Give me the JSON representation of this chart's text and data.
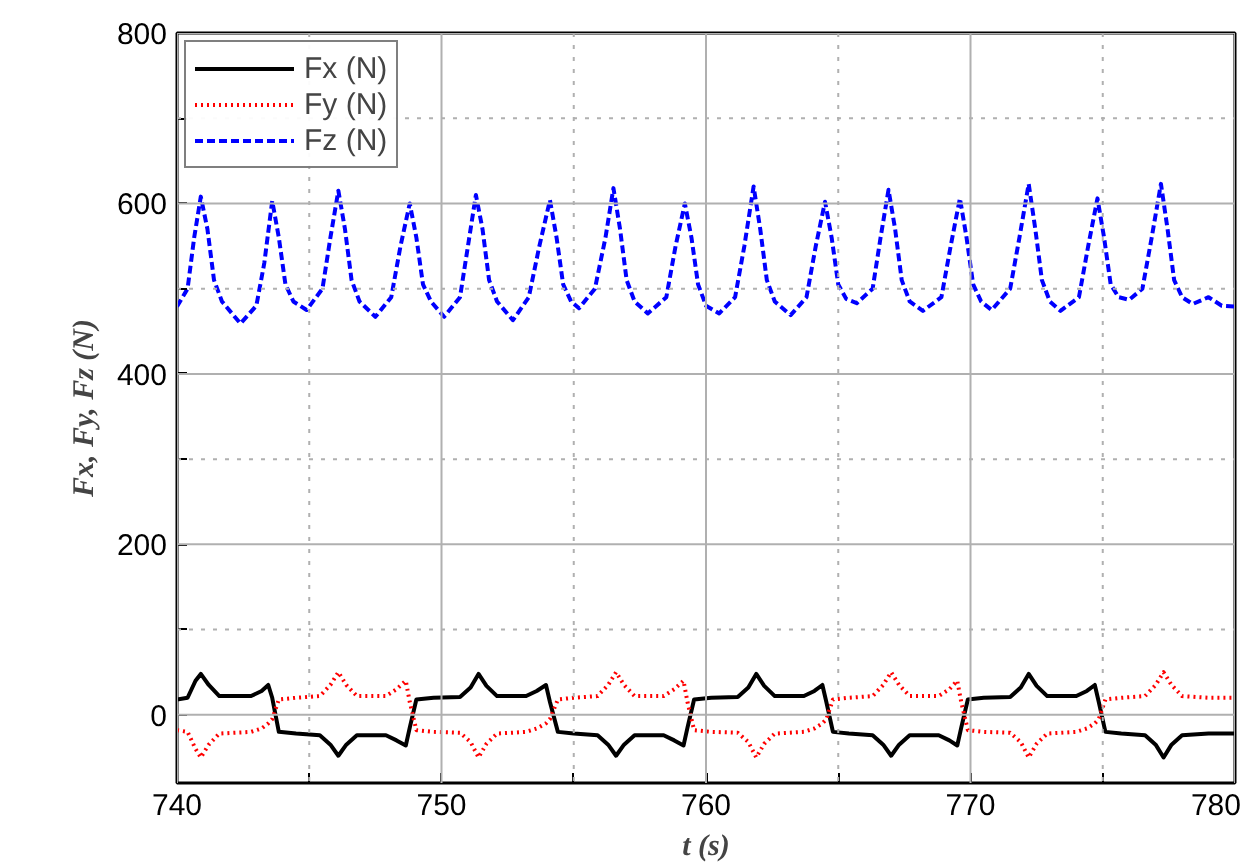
{
  "chart_data": {
    "type": "line",
    "xlabel": "t (s)",
    "ylabel": "Fx, Fy, Fz (N)",
    "xlim": [
      740,
      780
    ],
    "ylim": [
      -80,
      800
    ],
    "xticks": [
      740,
      {
        "value": 745,
        "label": null
      },
      750,
      {
        "value": 755,
        "label": null
      },
      760,
      {
        "value": 765,
        "label": null
      },
      770,
      {
        "value": 775,
        "label": null
      },
      780
    ],
    "yticks": [
      0,
      {
        "value": 100,
        "label": null
      },
      200,
      {
        "value": 300,
        "label": null
      },
      400,
      {
        "value": 500,
        "label": null
      },
      600,
      {
        "value": 700,
        "label": null
      },
      800
    ],
    "grid": true,
    "legend": "top left",
    "series": [
      {
        "name": "Fx (N)",
        "color": "#000000",
        "line_style": "solid",
        "x": [
          740,
          740.4,
          740.7,
          740.9,
          741.2,
          741.6,
          742.8,
          743.2,
          743.45,
          743.6,
          743.85,
          744.5,
          745.4,
          745.8,
          746.1,
          746.4,
          746.8,
          747.9,
          748.3,
          748.65,
          748.8,
          749.05,
          749.7,
          750.7,
          751.1,
          751.4,
          751.7,
          752.1,
          753.2,
          753.6,
          753.95,
          754.1,
          754.4,
          755.0,
          755.9,
          756.3,
          756.6,
          756.9,
          757.3,
          758.4,
          758.8,
          759.15,
          759.3,
          759.55,
          760.2,
          761.2,
          761.6,
          761.9,
          762.2,
          762.6,
          763.7,
          764.1,
          764.4,
          764.55,
          764.8,
          765.4,
          766.3,
          766.7,
          767.0,
          767.3,
          767.7,
          768.8,
          769.2,
          769.5,
          769.65,
          769.9,
          770.5,
          771.5,
          771.9,
          772.2,
          772.5,
          772.9,
          774.0,
          774.4,
          774.7,
          774.85,
          775.1,
          775.7,
          776.6,
          777.0,
          777.3,
          777.6,
          778.0,
          779.0,
          779.5,
          780
        ],
        "values": [
          18,
          20,
          40,
          48,
          35,
          22,
          22,
          28,
          35,
          20,
          -20,
          -22,
          -24,
          -35,
          -48,
          -35,
          -24,
          -24,
          -30,
          -36,
          -15,
          18,
          20,
          21,
          32,
          48,
          34,
          22,
          22,
          28,
          35,
          15,
          -20,
          -22,
          -24,
          -35,
          -48,
          -35,
          -24,
          -24,
          -30,
          -36,
          -15,
          18,
          20,
          21,
          32,
          48,
          34,
          22,
          22,
          28,
          35,
          15,
          -20,
          -22,
          -24,
          -35,
          -48,
          -35,
          -24,
          -24,
          -30,
          -36,
          -15,
          18,
          20,
          21,
          32,
          48,
          34,
          22,
          22,
          28,
          35,
          15,
          -20,
          -22,
          -24,
          -35,
          -50,
          -35,
          -24,
          -22,
          -22,
          -22
        ]
      },
      {
        "name": "Fy (N)",
        "color": "#ff0000",
        "line_style": "dotted",
        "x": [
          740,
          740.4,
          740.7,
          740.9,
          741.2,
          741.6,
          742.8,
          743.2,
          743.45,
          743.6,
          743.85,
          744.5,
          745.4,
          745.8,
          746.1,
          746.4,
          746.8,
          747.9,
          748.3,
          748.65,
          748.8,
          749.05,
          749.7,
          750.7,
          751.1,
          751.4,
          751.7,
          752.1,
          753.2,
          753.6,
          753.95,
          754.1,
          754.4,
          755.0,
          755.9,
          756.3,
          756.6,
          756.9,
          757.3,
          758.4,
          758.8,
          759.15,
          759.3,
          759.55,
          760.2,
          761.2,
          761.6,
          761.9,
          762.2,
          762.6,
          763.7,
          764.1,
          764.4,
          764.55,
          764.8,
          765.4,
          766.3,
          766.7,
          767.0,
          767.3,
          767.7,
          768.8,
          769.2,
          769.5,
          769.65,
          769.9,
          770.5,
          771.5,
          771.9,
          772.2,
          772.5,
          772.9,
          774.0,
          774.4,
          774.7,
          774.85,
          775.1,
          775.7,
          776.6,
          777.0,
          777.3,
          777.6,
          778.0,
          779.0,
          779.5,
          780
        ],
        "values": [
          -18,
          -20,
          -40,
          -50,
          -35,
          -22,
          -20,
          -16,
          -10,
          -5,
          18,
          20,
          22,
          35,
          50,
          35,
          22,
          22,
          30,
          40,
          15,
          -18,
          -20,
          -21,
          -32,
          -50,
          -34,
          -22,
          -20,
          -16,
          -10,
          -5,
          18,
          20,
          22,
          35,
          50,
          35,
          22,
          22,
          30,
          40,
          15,
          -18,
          -20,
          -21,
          -32,
          -50,
          -34,
          -22,
          -20,
          -16,
          -10,
          -5,
          18,
          20,
          22,
          35,
          50,
          35,
          22,
          22,
          30,
          40,
          15,
          -18,
          -20,
          -21,
          -32,
          -50,
          -34,
          -22,
          -20,
          -16,
          -10,
          -5,
          18,
          20,
          22,
          35,
          50,
          35,
          22,
          20,
          20,
          20
        ]
      },
      {
        "name": "Fz (N)",
        "color": "#0000ff",
        "line_style": "dashed",
        "x": [
          740,
          740.4,
          740.65,
          740.9,
          741.15,
          741.4,
          741.7,
          742.4,
          743.0,
          743.3,
          743.6,
          743.85,
          744.1,
          744.4,
          744.9,
          745.5,
          745.8,
          746.1,
          746.35,
          746.6,
          746.9,
          747.5,
          748.1,
          748.45,
          748.8,
          749.05,
          749.3,
          749.6,
          750.1,
          750.7,
          751.0,
          751.3,
          751.55,
          751.8,
          752.1,
          752.7,
          753.3,
          753.7,
          754.1,
          754.35,
          754.6,
          754.9,
          755.2,
          755.8,
          756.2,
          756.5,
          756.75,
          757.0,
          757.3,
          757.8,
          758.5,
          758.85,
          759.2,
          759.45,
          759.7,
          760.0,
          760.5,
          761.1,
          761.45,
          761.8,
          762.05,
          762.3,
          762.6,
          763.2,
          763.8,
          764.15,
          764.5,
          764.75,
          765.0,
          765.3,
          765.7,
          766.3,
          766.6,
          766.9,
          767.15,
          767.4,
          767.7,
          768.2,
          768.9,
          769.25,
          769.6,
          769.85,
          770.1,
          770.4,
          770.8,
          771.5,
          771.85,
          772.2,
          772.45,
          772.7,
          773.0,
          773.4,
          774.1,
          774.45,
          774.8,
          775.05,
          775.3,
          775.6,
          776.0,
          776.5,
          776.85,
          777.2,
          777.45,
          777.7,
          778.0,
          778.4,
          779.0,
          779.5,
          780
        ],
        "values": [
          479,
          500,
          560,
          608,
          570,
          510,
          485,
          459,
          480,
          530,
          603,
          560,
          505,
          485,
          475,
          500,
          560,
          615,
          570,
          510,
          485,
          467,
          490,
          550,
          600,
          560,
          505,
          485,
          467,
          490,
          550,
          610,
          570,
          510,
          485,
          463,
          490,
          550,
          604,
          560,
          505,
          485,
          477,
          500,
          560,
          618,
          570,
          510,
          485,
          471,
          490,
          550,
          600,
          560,
          505,
          480,
          471,
          490,
          550,
          620,
          570,
          510,
          485,
          469,
          490,
          550,
          602,
          560,
          505,
          488,
          483,
          500,
          560,
          616,
          570,
          510,
          485,
          474,
          490,
          550,
          606,
          560,
          505,
          485,
          475,
          500,
          560,
          623,
          570,
          510,
          485,
          474,
          490,
          550,
          606,
          560,
          505,
          490,
          487,
          500,
          560,
          623,
          570,
          510,
          490,
          482,
          490,
          480,
          479
        ]
      }
    ]
  }
}
